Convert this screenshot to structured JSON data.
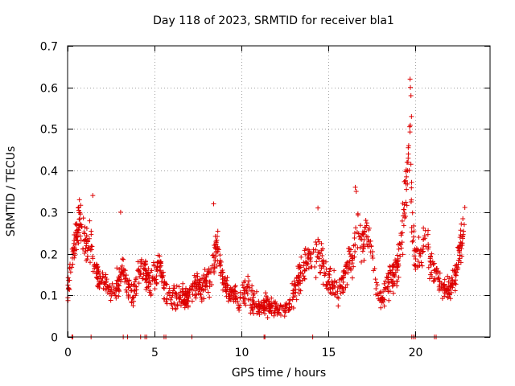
{
  "chart_data": {
    "type": "scatter",
    "title": "Day 118 of 2023, SRMTID for receiver bla1",
    "xlabel": "GPS time / hours",
    "ylabel": "SRMTID / TECUs",
    "xlim": [
      0,
      24.3
    ],
    "ylim": [
      0,
      0.7
    ],
    "xticks": [
      0,
      5,
      10,
      15,
      20
    ],
    "yticks": [
      0,
      0.1,
      0.2,
      0.3,
      0.4,
      0.5,
      0.6,
      0.7
    ],
    "grid": true,
    "marker": "+",
    "color": "#dd0000",
    "profile": {
      "x": [
        0.0,
        0.15,
        0.3,
        0.5,
        0.7,
        0.9,
        1.1,
        1.3,
        1.5,
        1.7,
        2.0,
        2.3,
        2.6,
        2.9,
        3.2,
        3.5,
        3.8,
        4.1,
        4.4,
        4.7,
        5.0,
        5.3,
        5.6,
        5.9,
        6.2,
        6.5,
        6.8,
        7.1,
        7.4,
        7.7,
        8.0,
        8.3,
        8.5,
        8.7,
        9.0,
        9.3,
        9.6,
        9.9,
        10.2,
        10.5,
        10.8,
        11.1,
        11.4,
        11.7,
        12.0,
        12.3,
        12.6,
        12.9,
        13.2,
        13.5,
        13.8,
        14.1,
        14.4,
        14.7,
        15.0,
        15.3,
        15.6,
        15.9,
        16.2,
        16.5,
        16.7,
        16.9,
        17.2,
        17.5,
        17.8,
        18.1,
        18.4,
        18.7,
        19.0,
        19.3,
        19.5,
        19.65,
        19.8,
        20.0,
        20.3,
        20.6,
        20.9,
        21.2,
        21.5,
        21.8,
        22.1,
        22.4,
        22.7,
        22.85
      ],
      "mean": [
        0.11,
        0.15,
        0.18,
        0.25,
        0.27,
        0.24,
        0.21,
        0.23,
        0.19,
        0.15,
        0.13,
        0.12,
        0.11,
        0.13,
        0.16,
        0.12,
        0.1,
        0.16,
        0.17,
        0.13,
        0.15,
        0.18,
        0.11,
        0.1,
        0.09,
        0.1,
        0.09,
        0.11,
        0.13,
        0.12,
        0.14,
        0.15,
        0.22,
        0.19,
        0.13,
        0.11,
        0.1,
        0.09,
        0.11,
        0.1,
        0.08,
        0.07,
        0.08,
        0.07,
        0.07,
        0.06,
        0.07,
        0.09,
        0.13,
        0.16,
        0.18,
        0.19,
        0.2,
        0.17,
        0.14,
        0.12,
        0.11,
        0.14,
        0.18,
        0.2,
        0.28,
        0.22,
        0.24,
        0.21,
        0.1,
        0.09,
        0.12,
        0.15,
        0.17,
        0.27,
        0.38,
        0.5,
        0.29,
        0.19,
        0.2,
        0.24,
        0.17,
        0.15,
        0.13,
        0.11,
        0.12,
        0.17,
        0.24,
        0.29
      ],
      "spread": [
        0.05,
        0.05,
        0.06,
        0.06,
        0.07,
        0.06,
        0.06,
        0.07,
        0.05,
        0.04,
        0.04,
        0.04,
        0.04,
        0.05,
        0.06,
        0.04,
        0.04,
        0.05,
        0.05,
        0.05,
        0.05,
        0.05,
        0.04,
        0.04,
        0.04,
        0.04,
        0.04,
        0.04,
        0.04,
        0.04,
        0.04,
        0.05,
        0.08,
        0.06,
        0.04,
        0.04,
        0.04,
        0.04,
        0.04,
        0.04,
        0.04,
        0.03,
        0.03,
        0.03,
        0.03,
        0.03,
        0.03,
        0.04,
        0.05,
        0.06,
        0.06,
        0.07,
        0.07,
        0.05,
        0.05,
        0.04,
        0.04,
        0.05,
        0.05,
        0.05,
        0.07,
        0.05,
        0.06,
        0.05,
        0.04,
        0.04,
        0.04,
        0.05,
        0.06,
        0.09,
        0.12,
        0.12,
        0.1,
        0.07,
        0.06,
        0.07,
        0.05,
        0.05,
        0.04,
        0.04,
        0.04,
        0.05,
        0.06,
        0.04
      ],
      "point_count": 1400
    },
    "extreme_points": {
      "x": [
        19.7,
        19.72,
        19.75,
        19.78,
        19.62,
        19.6,
        19.55,
        19.58,
        16.55,
        16.6,
        1.45,
        3.05,
        8.4,
        14.4,
        0.68
      ],
      "y": [
        0.62,
        0.6,
        0.58,
        0.53,
        0.46,
        0.44,
        0.4,
        0.42,
        0.36,
        0.35,
        0.34,
        0.3,
        0.32,
        0.31,
        0.33
      ]
    },
    "zero_points": {
      "x": [
        0.25,
        0.3,
        1.35,
        3.2,
        3.45,
        4.2,
        4.45,
        4.55,
        5.55,
        5.65,
        7.15,
        11.3,
        11.35,
        14.1,
        19.8,
        19.9,
        20.0,
        21.1,
        21.2
      ],
      "y": [
        0,
        0,
        0,
        0,
        0,
        0,
        0,
        0,
        0,
        0,
        0,
        0,
        0,
        0,
        0,
        0,
        0,
        0,
        0
      ]
    }
  }
}
